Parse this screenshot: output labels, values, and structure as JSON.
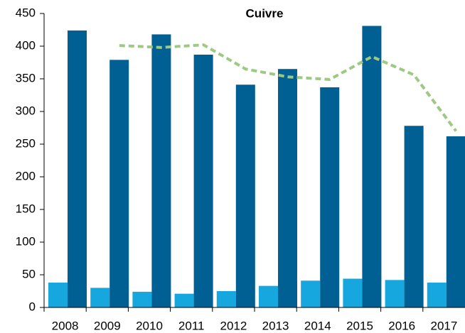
{
  "chart_data": {
    "type": "bar",
    "title": "Cuivre",
    "categories": [
      "2008",
      "2009",
      "2010",
      "2011",
      "2012",
      "2013",
      "2014",
      "2015",
      "2016",
      "2017"
    ],
    "series": [
      {
        "color": "#16a7df",
        "values": [
          38,
          30,
          24,
          21,
          25,
          33,
          41,
          44,
          42,
          38
        ]
      },
      {
        "color": "#005f93",
        "values": [
          424,
          379,
          418,
          387,
          341,
          365,
          337,
          431,
          278,
          262
        ]
      },
      {
        "type": "line",
        "color": "#9dc983",
        "dashed": true,
        "values": [
          null,
          401,
          398,
          402,
          365,
          353,
          349,
          384,
          356,
          270
        ]
      }
    ],
    "ylim": [
      0,
      450
    ],
    "yticks": [
      0,
      50,
      100,
      150,
      200,
      250,
      300,
      350,
      400,
      450
    ],
    "grid": false
  }
}
